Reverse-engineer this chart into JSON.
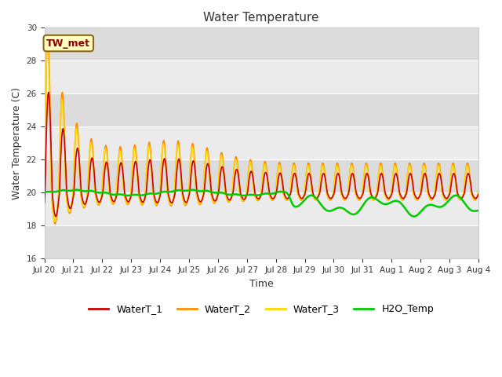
{
  "title": "Water Temperature",
  "xlabel": "Time",
  "ylabel": "Water Temperature (C)",
  "ylim": [
    16,
    30
  ],
  "yticks": [
    16,
    18,
    20,
    22,
    24,
    26,
    28,
    30
  ],
  "annotation_text": "TW_met",
  "annotation_color": "#8B0000",
  "annotation_bg": "#FFFFC0",
  "annotation_border": "#8B6914",
  "colors": {
    "WaterT_1": "#CC0000",
    "WaterT_2": "#FF8C00",
    "WaterT_3": "#FFD700",
    "H2O_Temp": "#00CC00"
  },
  "linewidths": {
    "WaterT_1": 1.2,
    "WaterT_2": 1.2,
    "WaterT_3": 1.2,
    "H2O_Temp": 1.8
  },
  "band_colors": [
    "#DCDCDC",
    "#EBEBEB"
  ],
  "fig_bg": "#FFFFFF",
  "n_points": 720,
  "days": 15
}
